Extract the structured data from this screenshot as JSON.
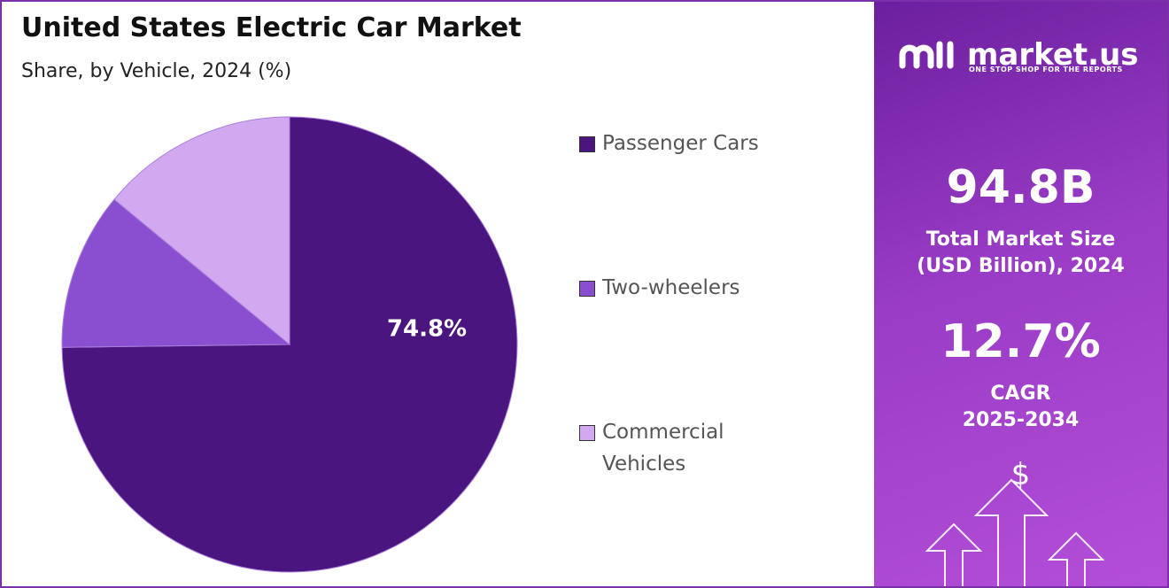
{
  "chart_data": {
    "type": "pie",
    "title": "United States Electric Car Market",
    "subtitle": "Share, by Vehicle, 2024 (%)",
    "categories": [
      "Passenger Cars",
      "Two-wheelers",
      "Commercial Vehicles"
    ],
    "values": [
      74.8,
      11.2,
      14.0
    ],
    "value_labels": [
      "74.8%",
      null,
      null
    ],
    "colors": [
      "#4b1580",
      "#8a4fd0",
      "#d2a8f0"
    ]
  },
  "panel": {
    "brand": "market.us",
    "tagline": "ONE STOP SHOP FOR THE REPORTS",
    "market_size": "94.8B",
    "market_size_label": [
      "Total Market Size",
      "(USD Billion), 2024"
    ],
    "cagr": "12.7%",
    "cagr_label": [
      "CAGR",
      "2025-2034"
    ],
    "icon": "$"
  }
}
